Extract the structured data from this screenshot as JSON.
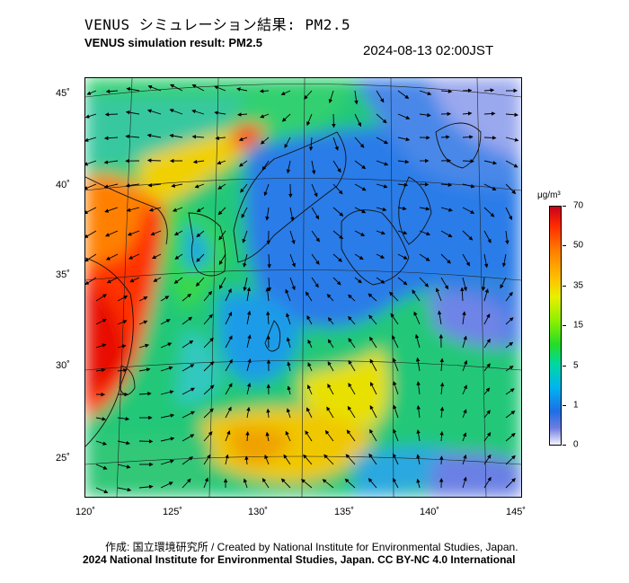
{
  "header": {
    "title_jp": "VENUS シミュレーション結果: PM2.5",
    "title_en": "VENUS simulation result: PM2.5",
    "timestamp": "2024-08-13 02:00JST"
  },
  "map": {
    "lat_labels": [
      "45˚",
      "40˚",
      "35˚",
      "30˚",
      "25˚"
    ],
    "lon_labels": [
      "120˚",
      "125˚",
      "130˚",
      "135˚",
      "140˚",
      "145˚"
    ]
  },
  "colorbar": {
    "unit": "μg/m³",
    "ticks": [
      "70",
      "50",
      "35",
      "15",
      "5",
      "1",
      "0"
    ]
  },
  "footer": {
    "credit_line1": "作成: 国立環境研究所 / Created by National Institute for Environmental Studies, Japan.",
    "credit_line2": "2024 National Institute for Environmental Studies, Japan. CC BY-NC 4.0 International"
  }
}
